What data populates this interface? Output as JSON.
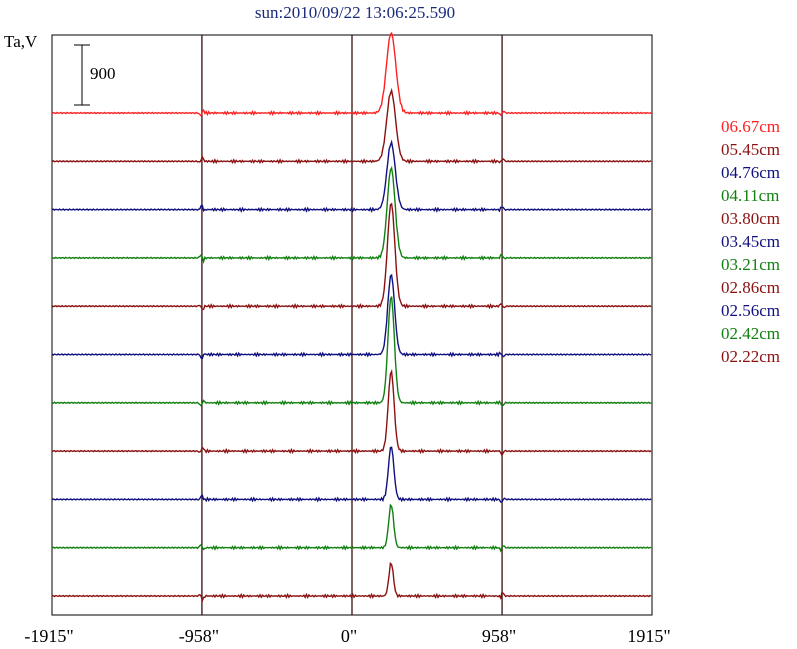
{
  "chart_data": {
    "type": "line",
    "title": "sun:2010/09/22 13:06:25.590",
    "ylabel": "Ta,V",
    "scale_bar_label": "900",
    "scale_bar_value": 900,
    "x_ticks": [
      {
        "value": -1915,
        "label": "-1915\""
      },
      {
        "value": -958,
        "label": "-958\""
      },
      {
        "value": 0,
        "label": "0\""
      },
      {
        "value": 958,
        "label": "958\""
      },
      {
        "value": 1915,
        "label": "1915\""
      }
    ],
    "xlim": [
      -1915,
      1915
    ],
    "vlines": [
      -958,
      0,
      958
    ],
    "peak_x": 250,
    "series": [
      {
        "name": "06.67cm",
        "color": "#ff2020",
        "peak": 1200
      },
      {
        "name": "05.45cm",
        "color": "#8b1010",
        "peak": 1050
      },
      {
        "name": "04.76cm",
        "color": "#101080",
        "peak": 1000
      },
      {
        "name": "04.11cm",
        "color": "#108010",
        "peak": 1350
      },
      {
        "name": "03.80cm",
        "color": "#8b1010",
        "peak": 1550
      },
      {
        "name": "03.45cm",
        "color": "#101080",
        "peak": 1200
      },
      {
        "name": "03.21cm",
        "color": "#108010",
        "peak": 1600
      },
      {
        "name": "02.86cm",
        "color": "#8b1010",
        "peak": 1200
      },
      {
        "name": "02.56cm",
        "color": "#101080",
        "peak": 800
      },
      {
        "name": "02.42cm",
        "color": "#108010",
        "peak": 650
      },
      {
        "name": "02.22cm",
        "color": "#8b1010",
        "peak": 500
      }
    ]
  }
}
